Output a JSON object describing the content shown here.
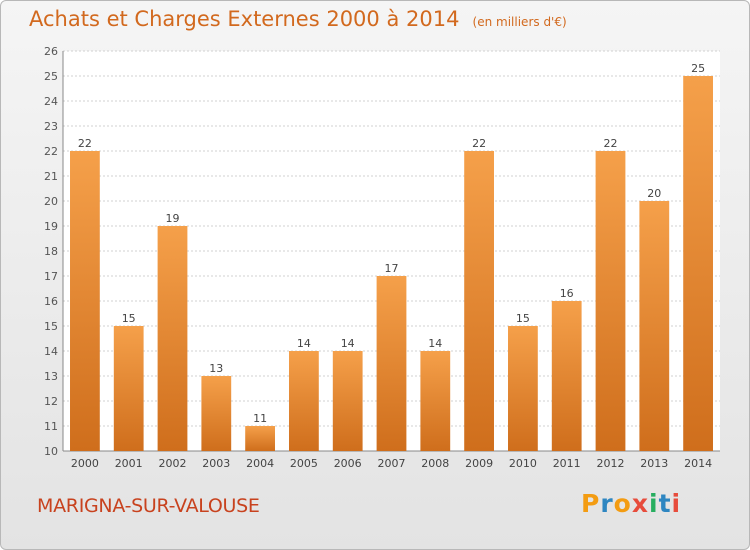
{
  "chart_data": {
    "type": "bar",
    "title": "Achats et Charges Externes 2000 à 2014",
    "subtitle": "(en milliers d'€)",
    "categories": [
      "2000",
      "2001",
      "2002",
      "2003",
      "2004",
      "2005",
      "2006",
      "2007",
      "2008",
      "2009",
      "2010",
      "2011",
      "2012",
      "2013",
      "2014"
    ],
    "values": [
      22,
      15,
      19,
      13,
      11,
      14,
      14,
      17,
      14,
      22,
      15,
      16,
      22,
      20,
      25
    ],
    "ylim": [
      10,
      26
    ],
    "yticks": [
      "10",
      "11",
      "12",
      "13",
      "14",
      "15",
      "16",
      "17",
      "18",
      "19",
      "20",
      "21",
      "22",
      "23",
      "24",
      "25",
      "26"
    ],
    "grid": true,
    "bar_color": "#f5a04a",
    "bar_color_dark": "#cf6e1c"
  },
  "footer": {
    "town": "MARIGNA-SUR-VALOUSE",
    "logo_text": "Proxiti",
    "logo_colors": [
      "#f39c12",
      "#2e86c1",
      "#f39c12",
      "#e74c3c",
      "#27ae60",
      "#2e86c1",
      "#e74c3c"
    ]
  }
}
